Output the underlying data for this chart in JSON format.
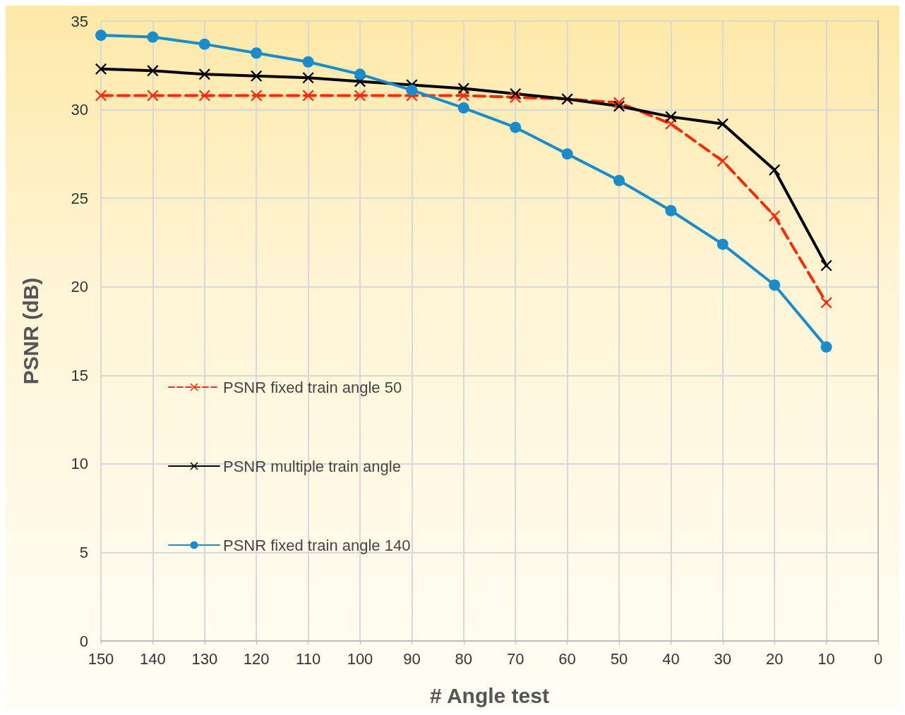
{
  "chart_data": {
    "type": "line",
    "xlabel": "# Angle test",
    "ylabel": "PSNR (dB)",
    "x": [
      150,
      140,
      130,
      120,
      110,
      100,
      90,
      80,
      70,
      60,
      50,
      40,
      30,
      20,
      10
    ],
    "xlim": [
      150,
      0
    ],
    "xticks": [
      150,
      140,
      130,
      120,
      110,
      100,
      90,
      80,
      70,
      60,
      50,
      40,
      30,
      20,
      10,
      0
    ],
    "ylim": [
      0,
      35
    ],
    "yticks": [
      0,
      5,
      10,
      15,
      20,
      25,
      30,
      35
    ],
    "grid": true,
    "legend": "left",
    "series": [
      {
        "name": "PSNR fixed train angle 50",
        "color": "#ff2a00",
        "line_style": "dashed",
        "marker": "cross",
        "values": [
          30.8,
          30.8,
          30.8,
          30.8,
          30.8,
          30.8,
          30.8,
          30.8,
          30.7,
          30.6,
          30.4,
          29.2,
          27.1,
          24.0,
          19.1
        ]
      },
      {
        "name": "PSNR multiple train angle",
        "color": "#000000",
        "line_style": "solid",
        "marker": "cross",
        "values": [
          32.3,
          32.2,
          32.0,
          31.9,
          31.8,
          31.6,
          31.4,
          31.2,
          30.9,
          30.6,
          30.2,
          29.6,
          29.2,
          26.6,
          21.2
        ]
      },
      {
        "name": "PSNR fixed train angle 140",
        "color": "#1a8ccc",
        "line_style": "solid",
        "marker": "circle",
        "values": [
          34.2,
          34.1,
          33.7,
          33.2,
          32.7,
          32.0,
          31.1,
          30.1,
          29.0,
          27.5,
          26.0,
          24.3,
          22.4,
          20.1,
          16.6
        ]
      }
    ]
  }
}
